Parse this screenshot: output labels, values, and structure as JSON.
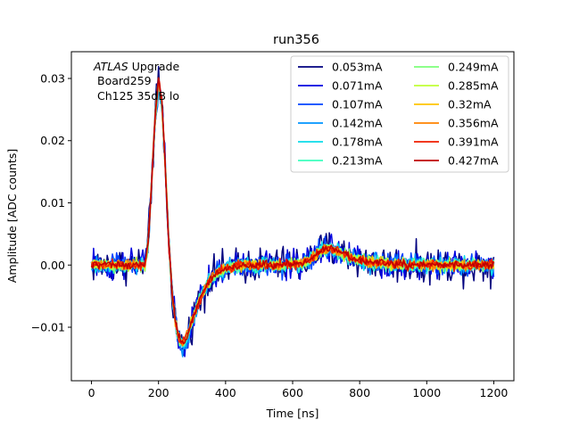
{
  "chart_data": {
    "type": "line",
    "title": "run356",
    "xlabel": "Time [ns]",
    "ylabel": "Amplitude [ADC counts]",
    "xlim": [
      -60,
      1260
    ],
    "ylim": [
      -0.0186,
      0.0343
    ],
    "xticks": [
      0,
      200,
      400,
      600,
      800,
      1000,
      1200
    ],
    "yticks": [
      -0.01,
      0.0,
      0.01,
      0.02,
      0.03
    ],
    "xtick_labels": [
      "0",
      "200",
      "400",
      "600",
      "800",
      "1000",
      "1200"
    ],
    "ytick_labels": [
      "−0.01",
      "0.00",
      "0.01",
      "0.02",
      "0.03"
    ],
    "grid": false,
    "legend": {
      "placement": "top-right",
      "columns": 2
    },
    "annotation": {
      "line1_italic": "ATLAS",
      "line1_rest": " Upgrade",
      "line2": "Board259",
      "line3": "Ch125 35dB lo"
    },
    "pulse_shape": {
      "t": [
        0,
        160,
        170,
        180,
        190,
        200,
        210,
        220,
        230,
        240,
        250,
        260,
        270,
        280,
        290,
        300,
        320,
        340,
        360,
        380,
        400,
        430,
        460,
        500,
        560,
        620,
        650,
        670,
        690,
        710,
        740,
        780,
        820,
        900,
        1000,
        1100,
        1200
      ],
      "amplitude": [
        0.0,
        0.0,
        0.004,
        0.014,
        0.024,
        0.0295,
        0.026,
        0.016,
        0.004,
        -0.004,
        -0.009,
        -0.012,
        -0.013,
        -0.0125,
        -0.011,
        -0.009,
        -0.006,
        -0.0035,
        -0.002,
        -0.001,
        -0.0005,
        -0.0002,
        0.0,
        0.0,
        0.0,
        0.0002,
        0.0008,
        0.0018,
        0.0025,
        0.0026,
        0.002,
        0.0012,
        0.0005,
        0.0001,
        0.0,
        0.0,
        0.0
      ]
    },
    "series": [
      {
        "name": "0.053mA",
        "color": "#00007f",
        "noise": 0.0018,
        "peak": 0.0295,
        "trough": -0.013
      },
      {
        "name": "0.071mA",
        "color": "#0000e0",
        "noise": 0.0015,
        "peak": 0.029,
        "trough": -0.0135
      },
      {
        "name": "0.107mA",
        "color": "#0044ff",
        "noise": 0.0011,
        "peak": 0.0285,
        "trough": -0.0128
      },
      {
        "name": "0.142mA",
        "color": "#0094ff",
        "noise": 0.0009,
        "peak": 0.0288,
        "trough": -0.0132
      },
      {
        "name": "0.178mA",
        "color": "#0cdcea",
        "noise": 0.0008,
        "peak": 0.029,
        "trough": -0.013
      },
      {
        "name": "0.213mA",
        "color": "#3bffbd",
        "noise": 0.0007,
        "peak": 0.0292,
        "trough": -0.0128
      },
      {
        "name": "0.249mA",
        "color": "#7dff7a",
        "noise": 0.0006,
        "peak": 0.0293,
        "trough": -0.0127
      },
      {
        "name": "0.285mA",
        "color": "#c0ff36",
        "noise": 0.0006,
        "peak": 0.0294,
        "trough": -0.0126
      },
      {
        "name": "0.32mA",
        "color": "#ffc400",
        "noise": 0.0005,
        "peak": 0.0296,
        "trough": -0.0126
      },
      {
        "name": "0.356mA",
        "color": "#ff8200",
        "noise": 0.0005,
        "peak": 0.0297,
        "trough": -0.0125
      },
      {
        "name": "0.391mA",
        "color": "#f11d00",
        "noise": 0.0005,
        "peak": 0.0298,
        "trough": -0.0125
      },
      {
        "name": "0.427mA",
        "color": "#bf0000",
        "noise": 0.0004,
        "peak": 0.03,
        "trough": -0.0124
      }
    ]
  }
}
